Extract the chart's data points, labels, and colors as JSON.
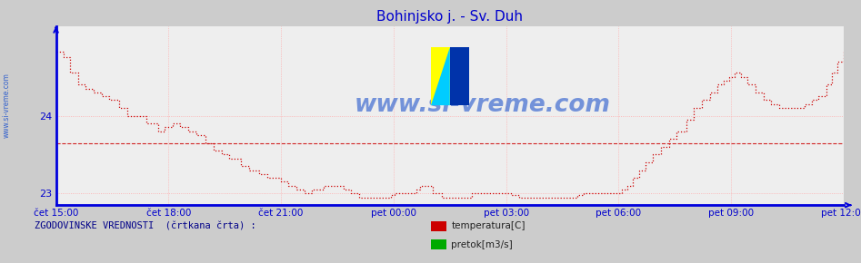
{
  "title": "Bohinjsko j. - Sv. Duh",
  "title_color": "#0000cc",
  "bg_color": "#cccccc",
  "plot_bg_color": "#eeeeee",
  "axis_color": "#0000dd",
  "grid_color": "#ffaaaa",
  "line_color": "#cc0000",
  "avg_line_color": "#cc0000",
  "avg_line_y": 23.65,
  "ylabel_color": "#0000cc",
  "xlabel_color": "#0000cc",
  "watermark_text": "www.si-vreme.com",
  "watermark_color": "#2255cc",
  "yticks": [
    23,
    24
  ],
  "ylim": [
    22.85,
    25.15
  ],
  "xlim_min": 0,
  "xlim_max": 1,
  "xtick_labels": [
    "čet 15:00",
    "čet 18:00",
    "čet 21:00",
    "pet 00:00",
    "pet 03:00",
    "pet 06:00",
    "pet 09:00",
    "pet 12:00"
  ],
  "xtick_fracs": [
    0.0,
    0.142857,
    0.285714,
    0.428571,
    0.571429,
    0.714286,
    0.857143,
    1.0
  ],
  "legend_items": [
    {
      "label": "temperatura[C]",
      "color": "#cc0000"
    },
    {
      "label": "pretok[m3/s]",
      "color": "#00aa00"
    }
  ],
  "legend_title": "ZGODOVINSKE VREDNOSTI  (črtkana črta) :",
  "temp_steps": [
    [
      0.0,
      24.82
    ],
    [
      0.01,
      24.75
    ],
    [
      0.018,
      24.55
    ],
    [
      0.028,
      24.4
    ],
    [
      0.038,
      24.35
    ],
    [
      0.048,
      24.3
    ],
    [
      0.058,
      24.25
    ],
    [
      0.068,
      24.2
    ],
    [
      0.08,
      24.1
    ],
    [
      0.09,
      24.0
    ],
    [
      0.1,
      24.0
    ],
    [
      0.115,
      23.9
    ],
    [
      0.13,
      23.8
    ],
    [
      0.138,
      23.85
    ],
    [
      0.148,
      23.9
    ],
    [
      0.158,
      23.85
    ],
    [
      0.168,
      23.8
    ],
    [
      0.178,
      23.75
    ],
    [
      0.19,
      23.65
    ],
    [
      0.2,
      23.55
    ],
    [
      0.21,
      23.5
    ],
    [
      0.22,
      23.45
    ],
    [
      0.235,
      23.35
    ],
    [
      0.245,
      23.3
    ],
    [
      0.258,
      23.25
    ],
    [
      0.268,
      23.2
    ],
    [
      0.278,
      23.2
    ],
    [
      0.285,
      23.15
    ],
    [
      0.295,
      23.1
    ],
    [
      0.305,
      23.05
    ],
    [
      0.315,
      23.0
    ],
    [
      0.325,
      23.05
    ],
    [
      0.34,
      23.1
    ],
    [
      0.355,
      23.1
    ],
    [
      0.365,
      23.05
    ],
    [
      0.375,
      23.0
    ],
    [
      0.385,
      22.95
    ],
    [
      0.395,
      22.95
    ],
    [
      0.405,
      22.95
    ],
    [
      0.415,
      22.95
    ],
    [
      0.425,
      22.98
    ],
    [
      0.43,
      23.0
    ],
    [
      0.44,
      23.0
    ],
    [
      0.45,
      23.0
    ],
    [
      0.458,
      23.05
    ],
    [
      0.462,
      23.1
    ],
    [
      0.47,
      23.1
    ],
    [
      0.478,
      23.0
    ],
    [
      0.49,
      22.95
    ],
    [
      0.5,
      22.95
    ],
    [
      0.51,
      22.95
    ],
    [
      0.52,
      22.95
    ],
    [
      0.528,
      23.0
    ],
    [
      0.535,
      23.0
    ],
    [
      0.545,
      23.0
    ],
    [
      0.555,
      23.0
    ],
    [
      0.562,
      23.0
    ],
    [
      0.57,
      23.0
    ],
    [
      0.578,
      22.98
    ],
    [
      0.588,
      22.95
    ],
    [
      0.6,
      22.95
    ],
    [
      0.608,
      22.95
    ],
    [
      0.615,
      22.95
    ],
    [
      0.625,
      22.95
    ],
    [
      0.635,
      22.95
    ],
    [
      0.645,
      22.95
    ],
    [
      0.655,
      22.95
    ],
    [
      0.662,
      22.98
    ],
    [
      0.67,
      23.0
    ],
    [
      0.68,
      23.0
    ],
    [
      0.69,
      23.0
    ],
    [
      0.7,
      23.0
    ],
    [
      0.71,
      23.0
    ],
    [
      0.718,
      23.05
    ],
    [
      0.725,
      23.1
    ],
    [
      0.732,
      23.2
    ],
    [
      0.74,
      23.3
    ],
    [
      0.748,
      23.4
    ],
    [
      0.758,
      23.5
    ],
    [
      0.768,
      23.6
    ],
    [
      0.778,
      23.7
    ],
    [
      0.788,
      23.8
    ],
    [
      0.8,
      23.95
    ],
    [
      0.81,
      24.1
    ],
    [
      0.82,
      24.2
    ],
    [
      0.83,
      24.3
    ],
    [
      0.84,
      24.4
    ],
    [
      0.848,
      24.45
    ],
    [
      0.855,
      24.5
    ],
    [
      0.862,
      24.55
    ],
    [
      0.87,
      24.5
    ],
    [
      0.878,
      24.4
    ],
    [
      0.888,
      24.3
    ],
    [
      0.898,
      24.2
    ],
    [
      0.908,
      24.15
    ],
    [
      0.918,
      24.1
    ],
    [
      0.928,
      24.1
    ],
    [
      0.938,
      24.1
    ],
    [
      0.95,
      24.15
    ],
    [
      0.96,
      24.2
    ],
    [
      0.968,
      24.25
    ],
    [
      0.978,
      24.4
    ],
    [
      0.985,
      24.55
    ],
    [
      0.992,
      24.7
    ],
    [
      1.0,
      24.85
    ]
  ]
}
